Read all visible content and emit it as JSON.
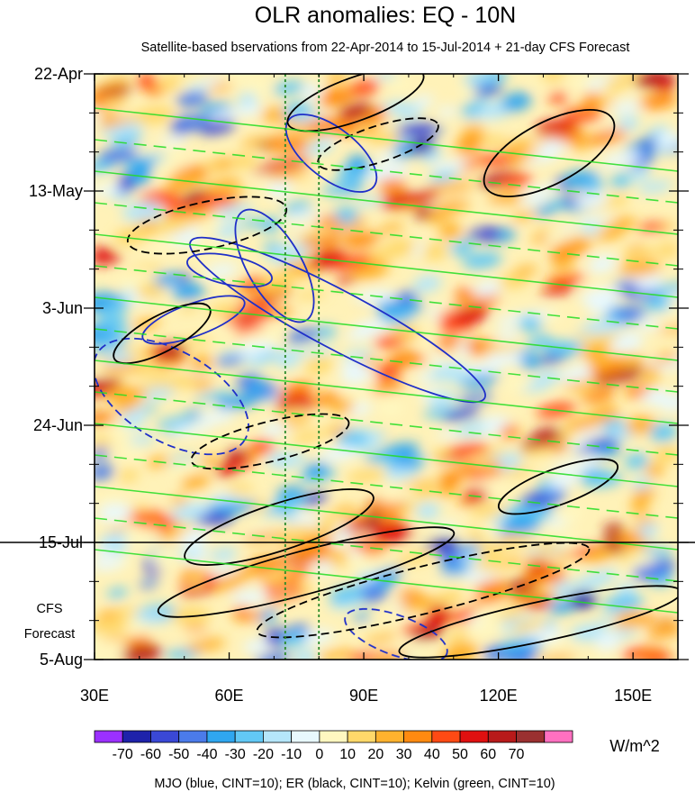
{
  "chart_data": {
    "type": "heatmap",
    "title": "OLR anomalies: EQ - 10N",
    "subtitle": "Satellite-based bservations from 22-Apr-2014 to 15-Jul-2014 + 21-day CFS Forecast",
    "x_ticks": [
      {
        "value": 30,
        "label": "30E"
      },
      {
        "value": 60,
        "label": "60E"
      },
      {
        "value": 90,
        "label": "90E"
      },
      {
        "value": 120,
        "label": "120E"
      },
      {
        "value": 150,
        "label": "150E"
      }
    ],
    "xlim": [
      30,
      160
    ],
    "y_ticks": [
      {
        "value": "2014-04-22",
        "label": "22-Apr"
      },
      {
        "value": "2014-05-13",
        "label": "13-May"
      },
      {
        "value": "2014-06-03",
        "label": "3-Jun"
      },
      {
        "value": "2014-06-24",
        "label": "24-Jun"
      },
      {
        "value": "2014-07-15",
        "label": "15-Jul"
      },
      {
        "value": "2014-08-05",
        "label": "5-Aug"
      }
    ],
    "ylim": [
      "2014-04-22",
      "2014-08-05"
    ],
    "forecast_start": "2014-07-15",
    "forecast_label_line1": "CFS",
    "forecast_label_line2": "Forecast",
    "reference_longitudes": [
      72.5,
      80
    ],
    "colorbar": {
      "levels": [
        -70,
        -60,
        -50,
        -40,
        -30,
        -20,
        -10,
        0,
        10,
        20,
        30,
        40,
        50,
        60,
        70
      ],
      "level_labels": [
        "-70",
        "-60",
        "-50",
        "-40",
        "-30",
        "-20",
        "-10",
        "0",
        "10",
        "20",
        "30",
        "40",
        "50",
        "60",
        "70"
      ],
      "colors": [
        "#9b30ff",
        "#1e22aa",
        "#3a48d6",
        "#4b7bea",
        "#2fa6f0",
        "#62c8f5",
        "#b5e6fa",
        "#e8f8fd",
        "#fff7c0",
        "#ffd86a",
        "#ffb22e",
        "#ff8a10",
        "#ff4a14",
        "#e01010",
        "#b81a1a",
        "#9a3030",
        "#ff70c0"
      ],
      "units": "W/m^2"
    },
    "footer": "MJO (blue, CINT=10); ER (black, CINT=10); Kelvin (green, CINT=10)"
  },
  "colors": {
    "mjo": "#1f2fc8",
    "er": "#000000",
    "kelvin": "#22dd22",
    "reference_line": "#2a8a2a"
  }
}
